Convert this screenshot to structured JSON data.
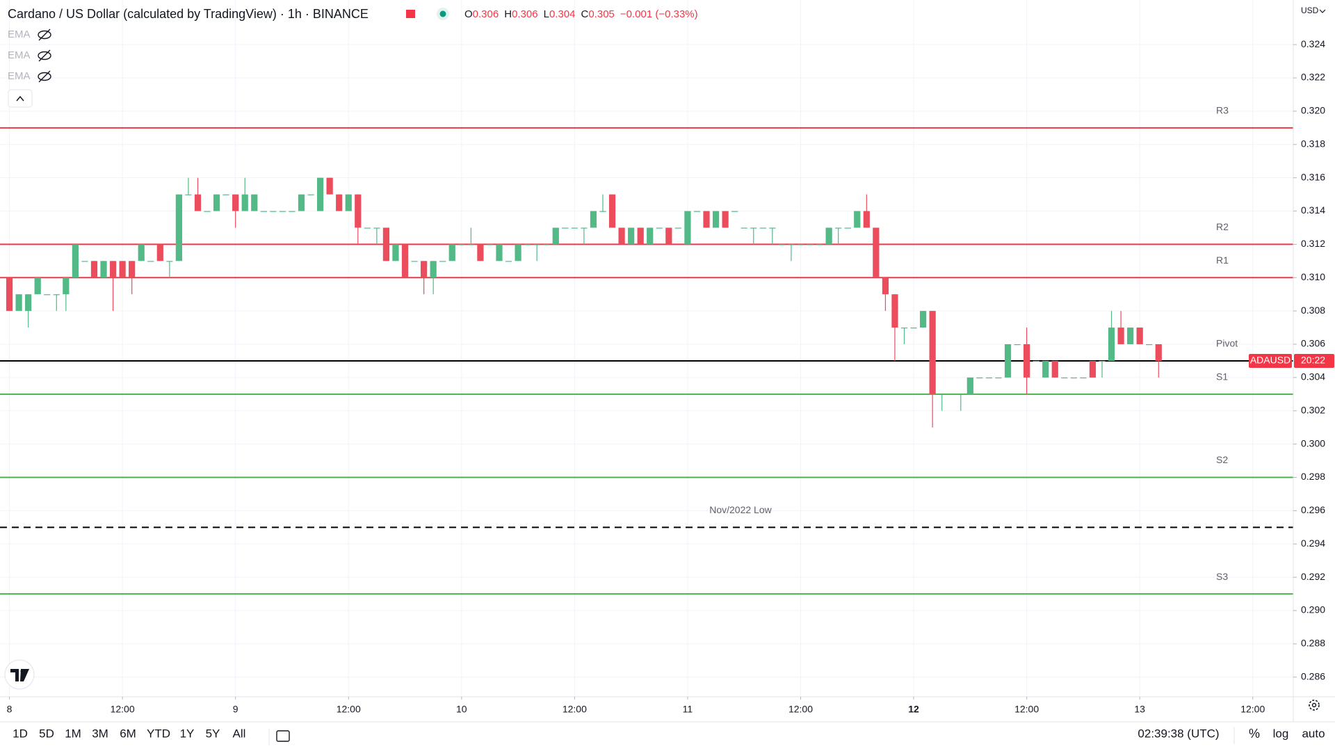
{
  "chart_data": {
    "type": "candlestick",
    "title": "Cardano / US Dollar (calculated by TradingView) · 1h · BINANCE",
    "legend": {
      "o": "O",
      "open": "0.306",
      "h": "H",
      "high": "0.306",
      "l": "L",
      "low": "0.304",
      "c": "C",
      "close": "0.305",
      "change": "−0.001 (−0.33%)"
    },
    "indicators": [
      "EMA",
      "EMA",
      "EMA"
    ],
    "currency": "USD",
    "up_color": "#53b987",
    "down_color": "#eb4d5c",
    "grid": true,
    "x": [
      0,
      1,
      2,
      3,
      4,
      5,
      6,
      7,
      8,
      9,
      10,
      11,
      12,
      13,
      14,
      15,
      16,
      17,
      18,
      19,
      20,
      21,
      22,
      23,
      24,
      25,
      26,
      27,
      28,
      29,
      30,
      31,
      32,
      33,
      34,
      35,
      36,
      37,
      38,
      39,
      40,
      41,
      42,
      43,
      44,
      45,
      46,
      47,
      48,
      49,
      50,
      51,
      52,
      53,
      54,
      55,
      56,
      57,
      58,
      59,
      60,
      61,
      62,
      63,
      64,
      65,
      66,
      67,
      68,
      69,
      70,
      71,
      72,
      73,
      74,
      75,
      76,
      77,
      78,
      79,
      80,
      81,
      82,
      83,
      84,
      85,
      86,
      87,
      88,
      89,
      90,
      91,
      92,
      93,
      94,
      95,
      96,
      97,
      98,
      99,
      100,
      101,
      102,
      103,
      104,
      105,
      106,
      107,
      108,
      109,
      110,
      111,
      112,
      113,
      114,
      115,
      116,
      117,
      118,
      119,
      120,
      121,
      122
    ],
    "open": [
      0.31,
      0.308,
      0.308,
      0.309,
      0.309,
      0.309,
      0.309,
      0.31,
      0.311,
      0.311,
      0.31,
      0.311,
      0.311,
      0.311,
      0.311,
      0.311,
      0.312,
      0.311,
      0.311,
      0.315,
      0.315,
      0.314,
      0.314,
      0.315,
      0.315,
      0.314,
      0.314,
      0.314,
      0.314,
      0.314,
      0.314,
      0.314,
      0.315,
      0.314,
      0.316,
      0.315,
      0.314,
      0.315,
      0.313,
      0.313,
      0.313,
      0.311,
      0.312,
      0.311,
      0.311,
      0.31,
      0.311,
      0.311,
      0.312,
      0.312,
      0.312,
      0.312,
      0.311,
      0.311,
      0.311,
      0.312,
      0.312,
      0.312,
      0.312,
      0.313,
      0.313,
      0.313,
      0.313,
      0.314,
      0.315,
      0.313,
      0.312,
      0.313,
      0.312,
      0.313,
      0.313,
      0.313,
      0.312,
      0.314,
      0.314,
      0.313,
      0.314,
      0.314,
      0.313,
      0.313,
      0.313,
      0.313,
      0.312,
      0.312,
      0.312,
      0.312,
      0.312,
      0.312,
      0.313,
      0.313,
      0.313,
      0.314,
      0.313,
      0.31,
      0.309,
      0.307,
      0.307,
      0.307,
      0.308,
      0.303,
      0.303,
      0.303,
      0.303,
      0.304,
      0.304,
      0.304,
      0.304,
      0.306,
      0.306,
      0.305,
      0.304,
      0.305,
      0.304,
      0.304,
      0.304,
      0.305,
      0.305,
      0.305,
      0.307,
      0.306,
      0.307,
      0.306,
      0.306
    ],
    "high": [
      0.31,
      0.309,
      0.309,
      0.31,
      0.309,
      0.309,
      0.31,
      0.312,
      0.311,
      0.311,
      0.311,
      0.311,
      0.311,
      0.311,
      0.312,
      0.311,
      0.312,
      0.311,
      0.315,
      0.316,
      0.316,
      0.314,
      0.315,
      0.315,
      0.315,
      0.316,
      0.315,
      0.314,
      0.314,
      0.314,
      0.314,
      0.315,
      0.315,
      0.316,
      0.316,
      0.315,
      0.315,
      0.315,
      0.313,
      0.313,
      0.313,
      0.312,
      0.312,
      0.311,
      0.311,
      0.311,
      0.311,
      0.312,
      0.312,
      0.313,
      0.312,
      0.312,
      0.312,
      0.311,
      0.312,
      0.312,
      0.312,
      0.312,
      0.313,
      0.313,
      0.313,
      0.313,
      0.314,
      0.315,
      0.315,
      0.313,
      0.313,
      0.313,
      0.313,
      0.313,
      0.313,
      0.313,
      0.314,
      0.314,
      0.314,
      0.314,
      0.314,
      0.314,
      0.313,
      0.313,
      0.313,
      0.313,
      0.312,
      0.312,
      0.312,
      0.312,
      0.312,
      0.313,
      0.313,
      0.313,
      0.314,
      0.315,
      0.313,
      0.31,
      0.309,
      0.307,
      0.307,
      0.308,
      0.308,
      0.303,
      0.303,
      0.303,
      0.304,
      0.304,
      0.304,
      0.304,
      0.306,
      0.306,
      0.307,
      0.305,
      0.305,
      0.305,
      0.304,
      0.304,
      0.304,
      0.305,
      0.305,
      0.308,
      0.308,
      0.307,
      0.307,
      0.306,
      0.306
    ],
    "low": [
      0.308,
      0.308,
      0.307,
      0.309,
      0.309,
      0.308,
      0.308,
      0.31,
      0.311,
      0.31,
      0.31,
      0.308,
      0.31,
      0.309,
      0.311,
      0.311,
      0.311,
      0.31,
      0.311,
      0.315,
      0.314,
      0.314,
      0.314,
      0.315,
      0.313,
      0.314,
      0.314,
      0.314,
      0.314,
      0.314,
      0.314,
      0.314,
      0.315,
      0.314,
      0.315,
      0.314,
      0.314,
      0.312,
      0.313,
      0.312,
      0.311,
      0.311,
      0.31,
      0.311,
      0.309,
      0.309,
      0.311,
      0.311,
      0.312,
      0.312,
      0.311,
      0.312,
      0.311,
      0.311,
      0.311,
      0.312,
      0.311,
      0.312,
      0.312,
      0.313,
      0.313,
      0.312,
      0.313,
      0.314,
      0.313,
      0.312,
      0.312,
      0.312,
      0.312,
      0.313,
      0.312,
      0.313,
      0.312,
      0.314,
      0.313,
      0.313,
      0.313,
      0.314,
      0.313,
      0.312,
      0.313,
      0.312,
      0.312,
      0.311,
      0.312,
      0.312,
      0.312,
      0.312,
      0.312,
      0.313,
      0.313,
      0.313,
      0.31,
      0.308,
      0.305,
      0.306,
      0.307,
      0.307,
      0.301,
      0.302,
      0.303,
      0.302,
      0.303,
      0.304,
      0.304,
      0.304,
      0.304,
      0.306,
      0.303,
      0.305,
      0.304,
      0.304,
      0.304,
      0.304,
      0.304,
      0.304,
      0.304,
      0.305,
      0.306,
      0.306,
      0.306,
      0.306,
      0.304
    ],
    "close": [
      0.308,
      0.309,
      0.309,
      0.31,
      0.309,
      0.309,
      0.31,
      0.312,
      0.311,
      0.31,
      0.311,
      0.31,
      0.31,
      0.31,
      0.312,
      0.311,
      0.311,
      0.311,
      0.315,
      0.315,
      0.314,
      0.314,
      0.315,
      0.315,
      0.314,
      0.315,
      0.315,
      0.314,
      0.314,
      0.314,
      0.314,
      0.315,
      0.315,
      0.316,
      0.315,
      0.314,
      0.315,
      0.313,
      0.313,
      0.313,
      0.311,
      0.312,
      0.31,
      0.311,
      0.31,
      0.311,
      0.311,
      0.312,
      0.312,
      0.312,
      0.311,
      0.312,
      0.312,
      0.311,
      0.312,
      0.312,
      0.312,
      0.312,
      0.313,
      0.313,
      0.313,
      0.313,
      0.314,
      0.314,
      0.313,
      0.312,
      0.313,
      0.312,
      0.313,
      0.313,
      0.312,
      0.313,
      0.314,
      0.314,
      0.313,
      0.314,
      0.313,
      0.314,
      0.313,
      0.313,
      0.313,
      0.313,
      0.312,
      0.312,
      0.312,
      0.312,
      0.312,
      0.313,
      0.313,
      0.313,
      0.314,
      0.313,
      0.31,
      0.309,
      0.307,
      0.307,
      0.307,
      0.308,
      0.303,
      0.303,
      0.303,
      0.303,
      0.304,
      0.304,
      0.304,
      0.304,
      0.306,
      0.306,
      0.304,
      0.305,
      0.305,
      0.304,
      0.304,
      0.304,
      0.304,
      0.304,
      0.305,
      0.307,
      0.306,
      0.307,
      0.306,
      0.306,
      0.305
    ],
    "xlim": [
      -1,
      136.3
    ],
    "xticks": [
      {
        "value": 0,
        "label": "8"
      },
      {
        "value": 12,
        "label": "12:00"
      },
      {
        "value": 24,
        "label": "9"
      },
      {
        "value": 36,
        "label": "12:00"
      },
      {
        "value": 48,
        "label": "10"
      },
      {
        "value": 60,
        "label": "12:00"
      },
      {
        "value": 72,
        "label": "11"
      },
      {
        "value": 84,
        "label": "12:00"
      },
      {
        "value": 96,
        "label": "12",
        "bold": true
      },
      {
        "value": 108,
        "label": "12:00"
      },
      {
        "value": 120,
        "label": "13"
      },
      {
        "value": 132,
        "label": "12:00"
      }
    ],
    "ylim": [
      0.28482,
      0.32668
    ],
    "yticks": [
      0.286,
      0.288,
      {
        "value": 0.29,
        "label": "0.290"
      },
      0.292,
      0.294,
      0.296,
      0.298,
      {
        "value": 0.3,
        "label": "0.300"
      },
      0.302,
      0.304,
      0.306,
      0.308,
      {
        "value": 0.31,
        "label": "0.310"
      },
      0.312,
      0.314,
      0.316,
      0.318,
      {
        "value": 0.32,
        "label": "0.320"
      },
      0.322,
      0.324
    ],
    "levels": [
      {
        "label": "R3",
        "value": 0.319,
        "color": "#f23645"
      },
      {
        "label": "R2",
        "value": 0.312,
        "color": "#f23645"
      },
      {
        "label": "R1",
        "value": 0.31,
        "color": "#f23645"
      },
      {
        "label": "Pivot",
        "value": 0.305,
        "color": "#000000"
      },
      {
        "label": "S1",
        "value": 0.303,
        "color": "#4caf50"
      },
      {
        "label": "S2",
        "value": 0.298,
        "color": "#4caf50"
      },
      {
        "label": "Nov/2022 Low",
        "value": 0.295,
        "color": "#000000",
        "dashed": true,
        "center": true
      },
      {
        "label": "S3",
        "value": 0.291,
        "color": "#4caf50"
      }
    ],
    "price_label": {
      "symbol": "ADAUSD",
      "countdown": "20:22"
    }
  },
  "toolbar": {
    "ranges": [
      "1D",
      "5D",
      "1M",
      "3M",
      "6M",
      "YTD",
      "1Y",
      "5Y",
      "All"
    ],
    "clock": "02:39:38 (UTC)",
    "percent": "%",
    "log": "log",
    "auto": "auto"
  }
}
